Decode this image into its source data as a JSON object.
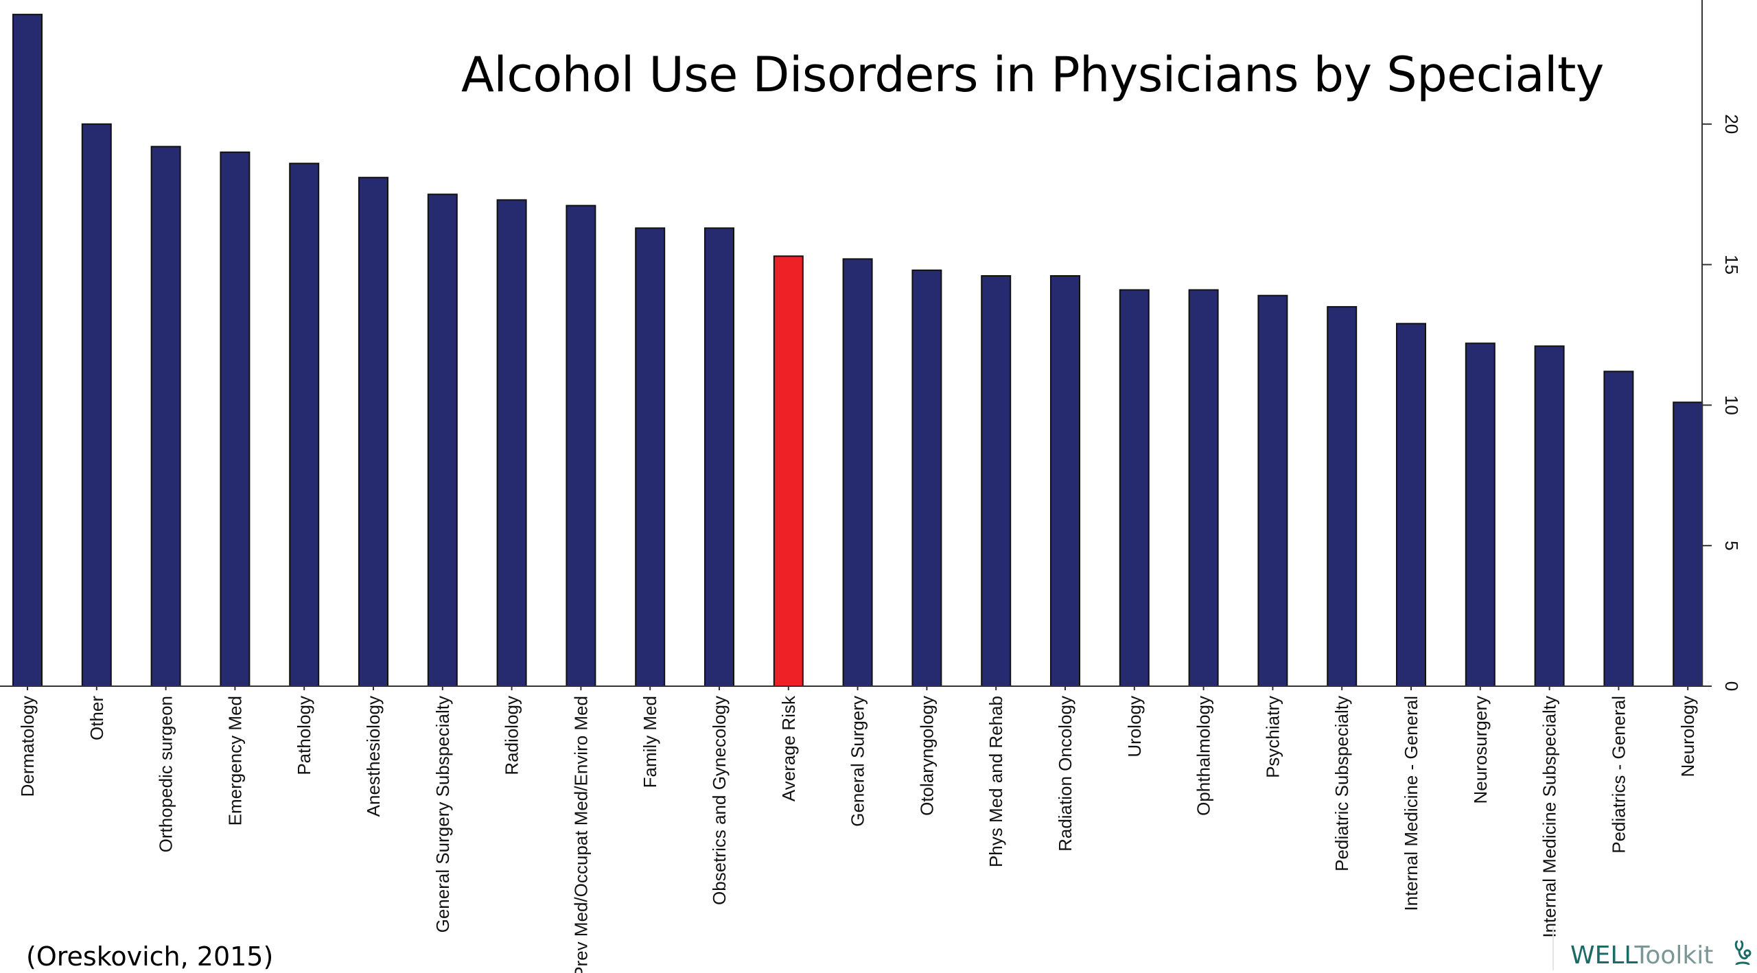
{
  "chart_data": {
    "type": "bar",
    "title": "Alcohol Use Disorders in Physicians by Specialty",
    "xlabel": "",
    "ylabel": "",
    "ylim": [
      0,
      24
    ],
    "yticks": [
      0,
      5,
      10,
      15,
      20
    ],
    "y_axis_side": "right",
    "categories": [
      "Dermatology",
      "Other",
      "Orthopedic surgeon",
      "Emergency Med",
      "Pathology",
      "Anesthesiology",
      "General Surgery Subspecialty",
      "Radiology",
      "Prev Med/Occupat Med/Enviro Med",
      "Family Med",
      "Obsetrics and Gynecology",
      "Average Risk",
      "General Surgery",
      "Otolaryngology",
      "Phys Med and Rehab",
      "Radiation Oncology",
      "Urology",
      "Ophthalmology",
      "Psychiatry",
      "Pediatric Subspecialty",
      "Internal Medicine - General",
      "Neurosurgery",
      "Internal Medicine Subspecialty",
      "Pediatrics - General",
      "Neurology"
    ],
    "values": [
      23.9,
      20.0,
      19.2,
      19.0,
      18.6,
      18.1,
      17.5,
      17.3,
      17.1,
      16.3,
      16.3,
      15.3,
      15.2,
      14.8,
      14.6,
      14.6,
      14.1,
      14.1,
      13.9,
      13.5,
      12.9,
      12.2,
      12.1,
      11.2,
      10.1
    ],
    "highlight_category": "Average Risk",
    "colors": {
      "bar": "#262a6e",
      "highlight": "#ee2226",
      "outline": "#111111"
    },
    "grid": false,
    "legend": "none"
  },
  "footer": {
    "source": "(Oreskovich, 2015)",
    "brand_strong": "WELL",
    "brand_light": "Toolkit",
    "brand_icon": "stethoscope-icon"
  }
}
